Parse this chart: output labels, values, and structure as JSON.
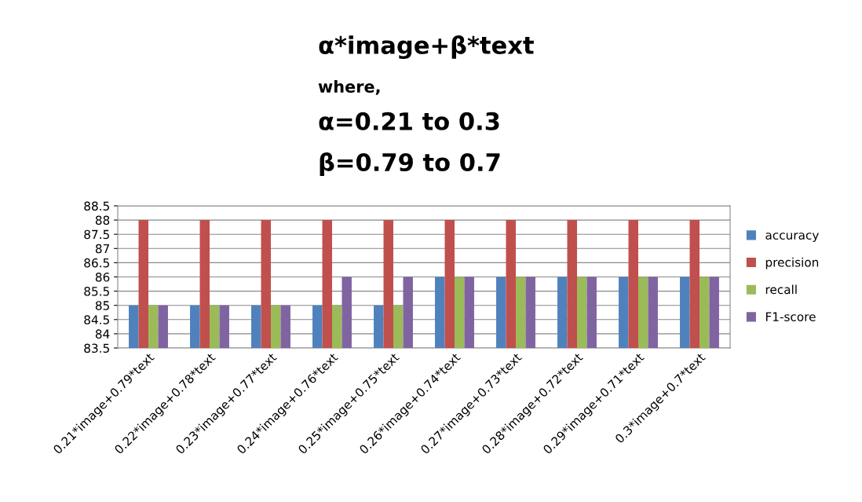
{
  "chart_data": {
    "type": "bar",
    "title": "α*image+β*text",
    "subtitle": "where,",
    "annotations": [
      "α=0.21 to 0.3",
      "β=0.79 to 0.7"
    ],
    "categories": [
      "0.21*image+0.79*text",
      "0.22*image+0.78*text",
      "0.23*image+0.77*text",
      "0.24*image+0.76*text",
      "0.25*image+0.75*text",
      "0.26*image+0.74*text",
      "0.27*image+0.73*text",
      "0.28*image+0.72*text",
      "0.29*image+0.71*text",
      "0.3*image+0.7*text"
    ],
    "series": [
      {
        "name": "accuracy",
        "color": "#4f81bd",
        "values": [
          85,
          85,
          85,
          85,
          85,
          86,
          86,
          86,
          86,
          86
        ]
      },
      {
        "name": "precision",
        "color": "#c0504d",
        "values": [
          88,
          88,
          88,
          88,
          88,
          88,
          88,
          88,
          88,
          88
        ]
      },
      {
        "name": "recall",
        "color": "#9bbb59",
        "values": [
          85,
          85,
          85,
          85,
          85,
          86,
          86,
          86,
          86,
          86
        ]
      },
      {
        "name": "F1-score",
        "color": "#8064a2",
        "values": [
          85,
          85,
          85,
          86,
          86,
          86,
          86,
          86,
          86,
          86
        ]
      }
    ],
    "ylim": [
      83.5,
      88.5
    ],
    "yticks": [
      83.5,
      84,
      84.5,
      85,
      85.5,
      86,
      86.5,
      87,
      87.5,
      88,
      88.5
    ],
    "grid": "y",
    "legend": "right"
  }
}
